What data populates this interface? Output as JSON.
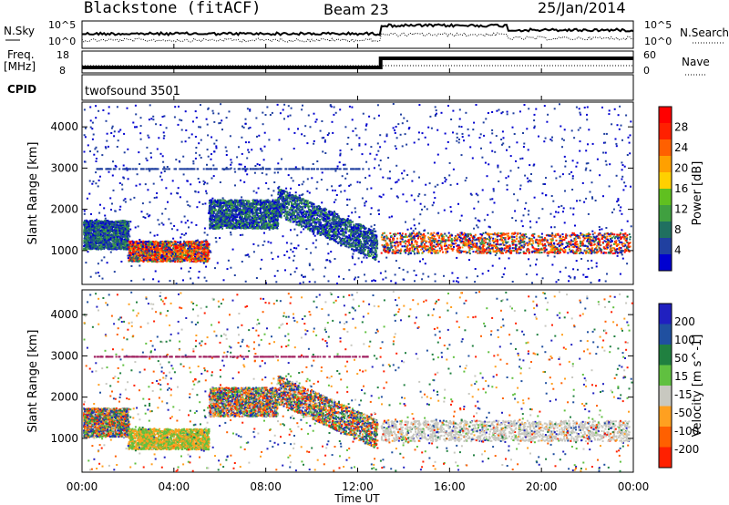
{
  "header": {
    "station": "Blackstone (fitACF)",
    "beam": "Beam 23",
    "date": "25/Jan/2014"
  },
  "nsky_panel": {
    "left_label": "N.Sky",
    "right_label": "N.Search",
    "ticks_left": [
      "10^5",
      "10^0"
    ],
    "ticks_right": [
      "10^5",
      "10^0"
    ]
  },
  "freq_panel": {
    "left_label_1": "Freq.",
    "left_label_2": "[MHz]",
    "right_label": "Nave",
    "ticks_left": [
      "18",
      "8"
    ],
    "ticks_right": [
      "60",
      "0"
    ]
  },
  "cpid_panel": {
    "label": "CPID",
    "value": "twofsound 3501"
  },
  "chart_data": [
    {
      "type": "heatmap",
      "quantity": "Power",
      "ylabel": "Slant Range [km]",
      "ylim": [
        180,
        4600
      ],
      "yticks": [
        "4000",
        "3000",
        "2000",
        "1000"
      ],
      "colorbar_label": "Power [dB]",
      "colorbar_ticks": [
        "28",
        "24",
        "20",
        "16",
        "12",
        "8",
        "4"
      ],
      "colors": [
        "#0000d0",
        "#2040a0",
        "#207060",
        "#40a040",
        "#60c020",
        "#ffd000",
        "#ffa000",
        "#ff6000",
        "#ff2000",
        "#ff0000"
      ],
      "echo_regions": [
        {
          "x_start": "00:00",
          "x_end": "02:00",
          "range_km": 1400,
          "band": "lower"
        },
        {
          "x_start": "02:00",
          "x_end": "05:30",
          "range_km": 1000,
          "band": "main"
        },
        {
          "x_start": "05:30",
          "x_end": "08:30",
          "range_km": 1900,
          "band": "upper"
        },
        {
          "x_start": "08:30",
          "x_end": "12:50",
          "range_km": 1700,
          "band": "arc"
        },
        {
          "x_start": "13:00",
          "x_end": "23:50",
          "range_km": 1200,
          "band": "main"
        }
      ]
    },
    {
      "type": "heatmap",
      "quantity": "Velocity",
      "ylabel": "Slant Range [km]",
      "ylim": [
        180,
        4600
      ],
      "yticks": [
        "4000",
        "3000",
        "2000",
        "1000"
      ],
      "colorbar_label": "Velocity [m s^-1]",
      "colorbar_ticks": [
        "200",
        "100",
        "50",
        "15",
        "-15",
        "-50",
        "-100",
        "-200"
      ],
      "colors": [
        "#2020c0",
        "#2050a0",
        "#208040",
        "#60c040",
        "#c8c8c0",
        "#ffa020",
        "#ff6000",
        "#ff2000"
      ],
      "xlabel": "Time UT",
      "xticks": [
        "00:00",
        "04:00",
        "08:00",
        "12:00",
        "16:00",
        "20:00",
        "00:00"
      ]
    }
  ]
}
